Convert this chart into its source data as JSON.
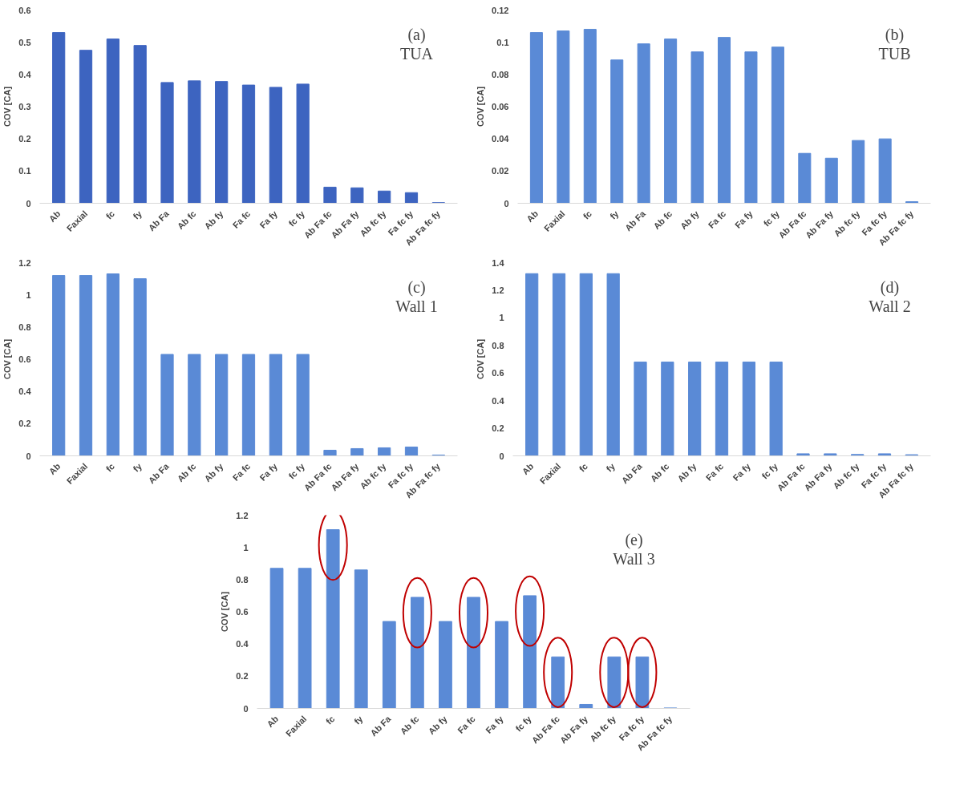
{
  "chart_data": [
    {
      "type": "bar",
      "ylabel": "COV [CA]",
      "annotations": [
        "(a)",
        "TUA"
      ],
      "categories": [
        "Ab",
        "Faxial",
        "fc",
        "fy",
        "Ab Fa",
        "Ab fc",
        "Ab fy",
        "Fa fc",
        "Fa fy",
        "fc fy",
        "Ab Fa fc",
        "Ab Fa fy",
        "Ab fc fy",
        "Fa fc fy",
        "Ab Fa fc fy"
      ],
      "values": [
        0.53,
        0.475,
        0.51,
        0.49,
        0.375,
        0.38,
        0.378,
        0.367,
        0.36,
        0.37,
        0.05,
        0.048,
        0.038,
        0.033,
        0.002
      ],
      "color": "#3d64c0",
      "ylim": [
        0,
        0.6
      ],
      "yticks": [
        0,
        0.1,
        0.2,
        0.3,
        0.4,
        0.5,
        0.6
      ],
      "grid": false
    },
    {
      "type": "bar",
      "ylabel": "COV [CA]",
      "annotations": [
        "(b)",
        "TUB"
      ],
      "categories": [
        "Ab",
        "Faxial",
        "fc",
        "fy",
        "Ab Fa",
        "Ab fc",
        "Ab fy",
        "Fa fc",
        "Fa fy",
        "fc fy",
        "Ab Fa fc",
        "Ab Fa fy",
        "Ab fc fy",
        "Fa fc fy",
        "Ab Fa fc fy"
      ],
      "values": [
        0.106,
        0.107,
        0.108,
        0.089,
        0.099,
        0.102,
        0.094,
        0.103,
        0.094,
        0.097,
        0.031,
        0.028,
        0.039,
        0.04,
        0.001
      ],
      "color": "#5a8ad6",
      "ylim": [
        0,
        0.12
      ],
      "yticks": [
        0,
        0.02,
        0.04,
        0.06,
        0.08,
        0.1,
        0.12
      ],
      "grid": false
    },
    {
      "type": "bar",
      "ylabel": "COV [CA]",
      "annotations": [
        "(c)",
        "Wall 1"
      ],
      "categories": [
        "Ab",
        "Faxial",
        "fc",
        "fy",
        "Ab Fa",
        "Ab fc",
        "Ab fy",
        "Fa fc",
        "Fa fy",
        "fc fy",
        "Ab Fa fc",
        "Ab Fa fy",
        "Ab fc fy",
        "Fa fc fy",
        "Ab Fa fc fy"
      ],
      "values": [
        1.12,
        1.12,
        1.13,
        1.1,
        0.63,
        0.63,
        0.63,
        0.63,
        0.63,
        0.63,
        0.035,
        0.045,
        0.05,
        0.055,
        0.005
      ],
      "color": "#5a8ad6",
      "ylim": [
        0,
        1.2
      ],
      "yticks": [
        0,
        0.2,
        0.4,
        0.6,
        0.8,
        1,
        1.2
      ],
      "grid": false
    },
    {
      "type": "bar",
      "ylabel": "COV [CA]",
      "annotations": [
        "(d)",
        "Wall 2"
      ],
      "categories": [
        "Ab",
        "Faxial",
        "fc",
        "fy",
        "Ab Fa",
        "Ab fc",
        "Ab fy",
        "Fa fc",
        "Fa fy",
        "fc fy",
        "Ab Fa fc",
        "Ab Fa fy",
        "Ab fc fy",
        "Fa fc fy",
        "Ab Fa fc fy"
      ],
      "values": [
        1.32,
        1.32,
        1.32,
        1.32,
        0.68,
        0.68,
        0.68,
        0.68,
        0.68,
        0.68,
        0.015,
        0.015,
        0.01,
        0.015,
        0.008
      ],
      "color": "#5a8ad6",
      "ylim": [
        0,
        1.4
      ],
      "yticks": [
        0,
        0.2,
        0.4,
        0.6,
        0.8,
        1,
        1.2,
        1.4
      ],
      "grid": false
    },
    {
      "type": "bar",
      "ylabel": "COV [CA]",
      "annotations": [
        "(e)",
        "Wall 3"
      ],
      "categories": [
        "Ab",
        "Faxial",
        "fc",
        "fy",
        "Ab Fa",
        "Ab fc",
        "Ab fy",
        "Fa fc",
        "Fa fy",
        "fc fy",
        "Ab Fa fc",
        "Ab Fa fy",
        "Ab fc fy",
        "Fa fc fy",
        "Ab Fa fc fy"
      ],
      "values": [
        0.87,
        0.87,
        1.11,
        0.86,
        0.54,
        0.69,
        0.54,
        0.69,
        0.54,
        0.7,
        0.32,
        0.025,
        0.32,
        0.32,
        0.003
      ],
      "color": "#5a8ad6",
      "ylim": [
        0,
        1.2
      ],
      "yticks": [
        0,
        0.2,
        0.4,
        0.6,
        0.8,
        1,
        1.2
      ],
      "grid": false
    }
  ]
}
